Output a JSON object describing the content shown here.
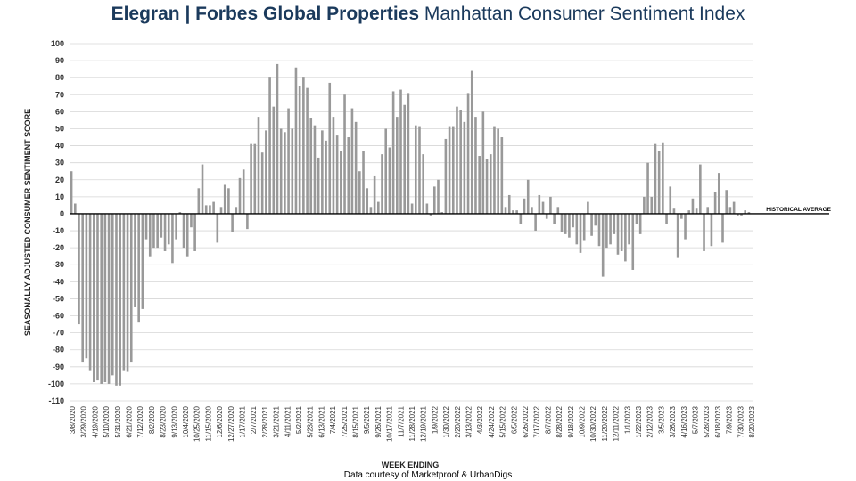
{
  "title_brand": "Elegran | Forbes Global Properties",
  "title_rest": " Manhattan Consumer Sentiment Index",
  "footer": "Data courtesy of Marketproof & UrbanDigs",
  "chart_data": {
    "type": "bar",
    "xlabel": "WEEK ENDING",
    "ylabel": "SEASONALLY ADJUSTED CONSUMER SENTIMENT SCORE",
    "ylim": [
      -110,
      100
    ],
    "yticks": [
      100,
      90,
      80,
      70,
      60,
      50,
      40,
      30,
      20,
      10,
      0,
      -10,
      -20,
      -30,
      -40,
      -50,
      -60,
      -70,
      -80,
      -90,
      -100,
      -110
    ],
    "reference_line": {
      "label": "HISTORICAL AVERAGE",
      "value": 0
    },
    "bar_color": "#999999",
    "grid": true,
    "tick_labels": [
      "3/8/2020",
      "3/29/2020",
      "4/19/2020",
      "5/10/2020",
      "5/31/2020",
      "6/21/2020",
      "7/12/2020",
      "8/2/2020",
      "8/23/2020",
      "9/13/2020",
      "10/4/2020",
      "10/25/2020",
      "11/15/2020",
      "12/6/2020",
      "12/27/2020",
      "1/17/2021",
      "2/7/2021",
      "2/28/2021",
      "3/21/2021",
      "4/11/2021",
      "5/2/2021",
      "5/23/2021",
      "6/13/2021",
      "7/4/2021",
      "7/25/2021",
      "8/15/2021",
      "9/5/2021",
      "9/26/2021",
      "10/17/2021",
      "11/7/2021",
      "11/28/2021",
      "12/19/2021",
      "1/9/2022",
      "1/30/2022",
      "2/20/2022",
      "3/13/2022",
      "4/3/2022",
      "4/24/2022",
      "5/15/2022",
      "6/5/2022",
      "6/26/2022",
      "7/17/2022",
      "8/7/2022",
      "8/28/2022",
      "9/18/2022",
      "10/9/2022",
      "10/30/2022",
      "11/20/2022",
      "12/11/2022",
      "1/1/2023",
      "1/22/2023",
      "2/12/2023",
      "3/5/2023",
      "3/26/2023",
      "4/16/2023",
      "5/7/2023",
      "5/28/2023",
      "6/18/2023",
      "7/9/2023",
      "7/30/2023",
      "8/20/2023"
    ],
    "values": [
      25,
      6,
      -65,
      -87,
      -85,
      -92,
      -99,
      -98,
      -100,
      -99,
      -100,
      -95,
      -101,
      -101,
      -92,
      -93,
      -87,
      -55,
      -64,
      -56,
      -15,
      -25,
      -20,
      -20,
      -14,
      -22,
      -18,
      -29,
      -15,
      1,
      -20,
      -25,
      -8,
      -22,
      15,
      29,
      5,
      5,
      7,
      -17,
      4,
      17,
      15,
      -11,
      4,
      21,
      26,
      -9,
      41,
      41,
      57,
      36,
      49,
      80,
      63,
      88,
      50,
      48,
      62,
      50,
      86,
      75,
      80,
      74,
      56,
      52,
      33,
      49,
      43,
      77,
      57,
      46,
      37,
      70,
      45,
      62,
      54,
      25,
      37,
      15,
      4,
      22,
      7,
      35,
      50,
      39,
      72,
      57,
      73,
      64,
      71,
      6,
      52,
      51,
      35,
      6,
      -1,
      16,
      20,
      1,
      44,
      51,
      51,
      63,
      61,
      54,
      71,
      84,
      57,
      34,
      60,
      32,
      35,
      51,
      50,
      45,
      4,
      11,
      2,
      2,
      -6,
      9,
      20,
      4,
      -10,
      11,
      7,
      -3,
      10,
      -6,
      4,
      -11,
      -12,
      -14,
      -8,
      -18,
      -23,
      -16,
      7,
      -13,
      -7,
      -19,
      -37,
      -20,
      -18,
      -12,
      -24,
      -22,
      -28,
      -18,
      -33,
      -6,
      -12,
      10,
      30,
      10,
      41,
      37,
      42,
      -6,
      16,
      3,
      -26,
      -3,
      -15,
      2,
      9,
      3,
      29,
      -22,
      4,
      -19,
      13,
      24,
      -17,
      14,
      4,
      7,
      -1,
      -1,
      2,
      1
    ]
  }
}
